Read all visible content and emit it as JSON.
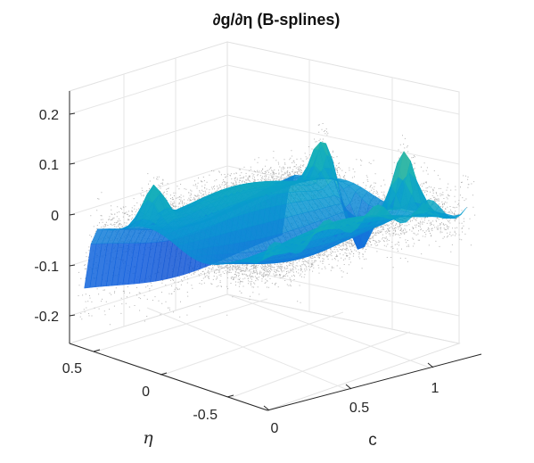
{
  "chart_data": {
    "type": "surface-3d",
    "title": "∂g/∂η (B-splines)",
    "xlabel": "c",
    "ylabel": "η",
    "zlabel": "",
    "xlim": [
      0,
      1.3
    ],
    "ylim": [
      -0.75,
      0.75
    ],
    "zlim": [
      -0.25,
      0.25
    ],
    "x_ticks": [
      "0",
      "0.5",
      "1"
    ],
    "y_ticks": [
      "0.5",
      "0",
      "-0.5"
    ],
    "z_ticks": [
      "0.2",
      "0.1",
      "0",
      "-0.1",
      "-0.2"
    ],
    "grid": true,
    "colormap": "parula",
    "scatter_color": "#b4b4b4",
    "series": [
      {
        "kind": "gray-scatter",
        "x_range": [
          0,
          1.3
        ],
        "y_range": [
          -0.75,
          0.75
        ],
        "z_range": [
          -0.28,
          0.25
        ]
      },
      {
        "kind": "colored-surface",
        "x_range": [
          0.05,
          1.25
        ],
        "y_range": [
          -0.7,
          0.7
        ],
        "z_range": [
          -0.2,
          0.2
        ]
      }
    ]
  }
}
